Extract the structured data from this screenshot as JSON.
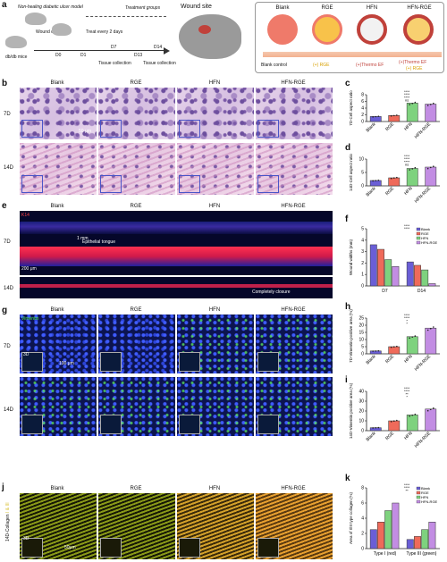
{
  "panels": {
    "a": "a",
    "b": "b",
    "c": "c",
    "d": "d",
    "e": "e",
    "f": "f",
    "g": "g",
    "h": "h",
    "i": "i",
    "j": "j",
    "k": "k"
  },
  "schematic": {
    "model_title": "Non-healing diabetic ulcer model",
    "mice_label": "db/db mice",
    "wound_creation": "Wound creation",
    "treat_every": "Treat every 2 days",
    "treatment_groups": "Treatment groups",
    "wound_site": "Wound site",
    "timeline": [
      "D0",
      "D1",
      "D7",
      "D13",
      "D14"
    ],
    "tissue_collection_1": "Tissue collection",
    "tissue_collection_2": "Tissue collection",
    "groups": [
      "Blank",
      "RGE",
      "HFN",
      "HFN-RGE"
    ],
    "notes": [
      "Blank control",
      "(+) RGE",
      "(+)Thermo EF",
      "(+)Thermo EF",
      "(+) RGE"
    ]
  },
  "he": {
    "columns": [
      "Blank",
      "RGE",
      "HFN",
      "HFN-RGE"
    ],
    "rows": [
      "7D",
      "14D"
    ],
    "scalebar": "50 μm"
  },
  "he_colors": {
    "cell": "#6d4f9e",
    "stroma": "#e6d3ea"
  },
  "fluor_e": {
    "columns": [
      "Blank",
      "RGE",
      "HFN",
      "HFN-RGE"
    ],
    "rows": [
      "7D",
      "14D"
    ],
    "k14": "K14",
    "epithelial_tongue": "Epithelial tongue",
    "completely_closure": "Completely closure",
    "scale_1mm": "1 mm",
    "scale_200": "200 μm"
  },
  "vim": {
    "columns": [
      "Blank",
      "RGE",
      "HFN",
      "HFN-RGE"
    ],
    "rows": [
      "7D",
      "14D"
    ],
    "label": "Vimentin",
    "inset": "3D",
    "scalebar": "100 μm"
  },
  "collagen": {
    "columns": [
      "Blank",
      "RGE",
      "HFN",
      "HFN-RGE"
    ],
    "row_label": "14D-Collagen",
    "roman": "I & III",
    "inset": "3D",
    "scalebar": "50μm"
  },
  "colors": {
    "blank": "#6a5ed6",
    "rge": "#ef6a5a",
    "hfn": "#7ed27e",
    "hfnrge": "#c28de3"
  },
  "chart_data": [
    {
      "id": "c",
      "type": "bar",
      "categories": [
        "Blank",
        "RGE",
        "HFN",
        "HFN-RGE"
      ],
      "values": [
        1.5,
        1.8,
        5.5,
        5.2
      ],
      "ylabel": "7D-Cell aspect ratio",
      "ylim": [
        0,
        8
      ],
      "yticks": [
        "0",
        "2",
        "4",
        "6",
        "8"
      ],
      "annotations": [
        "****",
        "****",
        "****",
        "ns"
      ]
    },
    {
      "id": "d",
      "type": "bar",
      "categories": [
        "Blank",
        "RGE",
        "HFN",
        "HFN-RGE"
      ],
      "values": [
        2,
        3,
        6.5,
        7
      ],
      "ylabel": "14D-Cell aspect ratio",
      "ylim": [
        0,
        10
      ],
      "yticks": [
        "0",
        "5",
        "10"
      ],
      "annotations": [
        "****",
        "****",
        "****",
        "ns"
      ]
    },
    {
      "id": "f",
      "type": "bar",
      "categories": [
        "D7",
        "D14"
      ],
      "series": [
        {
          "name": "Blank",
          "values": [
            3.6,
            2.1
          ]
        },
        {
          "name": "RGE",
          "values": [
            3.2,
            1.8
          ]
        },
        {
          "name": "HFN",
          "values": [
            2.3,
            1.4
          ]
        },
        {
          "name": "HFN-RGE",
          "values": [
            1.7,
            0.2
          ]
        }
      ],
      "ylabel": "Wound widths (mm)",
      "ylim": [
        0,
        5
      ],
      "yticks": [
        "0",
        "1",
        "2",
        "3",
        "4",
        "5"
      ],
      "annotations": [
        "****",
        "****"
      ]
    },
    {
      "id": "h",
      "type": "bar",
      "categories": [
        "Blank",
        "RGE",
        "HFN",
        "HFN-RGE"
      ],
      "values": [
        2,
        5,
        12,
        18
      ],
      "ylabel": "7D-Vimentin positive area (%)",
      "ylim": [
        0,
        25
      ],
      "yticks": [
        "0",
        "5",
        "10",
        "15",
        "20",
        "25"
      ],
      "annotations": [
        "****",
        "****",
        "*",
        "*"
      ]
    },
    {
      "id": "i",
      "type": "bar",
      "categories": [
        "Blank",
        "RGE",
        "HFN",
        "HFN-RGE"
      ],
      "values": [
        3,
        10,
        16,
        22
      ],
      "ylabel": "14D-Vimentin positive area (%)",
      "ylim": [
        0,
        40
      ],
      "yticks": [
        "0",
        "10",
        "20",
        "30",
        "40"
      ],
      "annotations": [
        "****",
        "****",
        "**",
        "*"
      ]
    },
    {
      "id": "k",
      "type": "bar",
      "categories": [
        "Type I (red)",
        "Type III (green)"
      ],
      "series": [
        {
          "name": "Blank",
          "values": [
            2.5,
            1.2
          ]
        },
        {
          "name": "RGE",
          "values": [
            3.5,
            1.6
          ]
        },
        {
          "name": "HFN",
          "values": [
            5,
            2.5
          ]
        },
        {
          "name": "HFN-RGE",
          "values": [
            6,
            3.5
          ]
        }
      ],
      "ylabel": "Area of I/III type collagen (%)",
      "ylim": [
        0,
        8
      ],
      "yticks": [
        "0",
        "2",
        "4",
        "6",
        "8"
      ],
      "annotations": [
        "****",
        "****",
        "**"
      ]
    }
  ]
}
